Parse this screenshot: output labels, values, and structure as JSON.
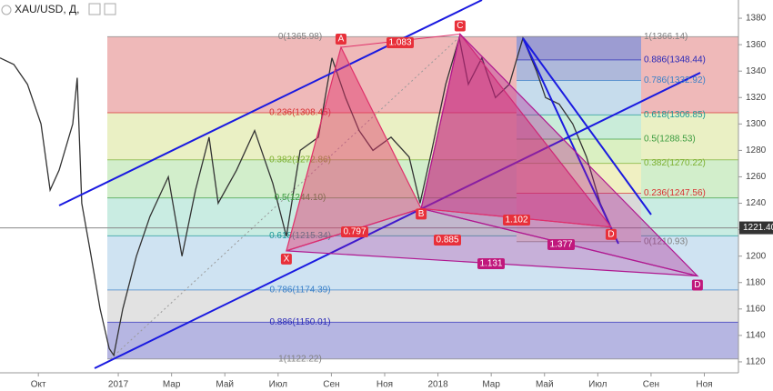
{
  "header": {
    "symbol": "XAU/USD, Д,"
  },
  "chart_data": {
    "type": "line",
    "x": [
      -1.44,
      -0.92,
      -0.41,
      0.1,
      0.44,
      0.78,
      1.29,
      1.46,
      1.63,
      1.98,
      2.32,
      2.66,
      2.83,
      3.17,
      3.68,
      4.19,
      4.88,
      5.39,
      5.9,
      6.41,
      6.75,
      7.44,
      8.12,
      8.8,
      9.31,
      9.83,
      10.51,
      11.02,
      11.53,
      12.04,
      12.56,
      13.24,
      13.92,
      14.33,
      14.77,
      15.29,
      15.8,
      16.14,
      16.65,
      17.16,
      17.68,
      18.19,
      18.7,
      19.04,
      19.55,
      20.06,
      20.58,
      21.09,
      21.43,
      21.6
    ],
    "values": [
      1350,
      1345,
      1330,
      1300,
      1250,
      1265,
      1300,
      1335,
      1240,
      1200,
      1160,
      1130,
      1125,
      1160,
      1200,
      1230,
      1260,
      1200,
      1250,
      1290,
      1240,
      1265,
      1295,
      1255,
      1215,
      1280,
      1290,
      1350,
      1320,
      1295,
      1280,
      1290,
      1275,
      1240,
      1280,
      1330,
      1365,
      1330,
      1350,
      1320,
      1330,
      1365,
      1340,
      1320,
      1315,
      1300,
      1275,
      1240,
      1225,
      1215
    ],
    "color": "#333333",
    "xlim": [
      -1.44,
      26.28
    ],
    "xticks": [
      {
        "value": 0,
        "label": "Окт"
      },
      {
        "value": 3,
        "label": "2017"
      },
      {
        "value": 5,
        "label": "Мар"
      },
      {
        "value": 7,
        "label": "Май"
      },
      {
        "value": 9,
        "label": "Июл"
      },
      {
        "value": 11,
        "label": "Сен"
      },
      {
        "value": 13,
        "label": "Ноя"
      },
      {
        "value": 15,
        "label": "2018"
      },
      {
        "value": 17,
        "label": "Мар"
      },
      {
        "value": 19,
        "label": "Май"
      },
      {
        "value": 21,
        "label": "Июл"
      },
      {
        "value": 23,
        "label": "Сен"
      },
      {
        "value": 25,
        "label": "Ноя"
      }
    ],
    "ylim": [
      1111.7,
      1393.8
    ],
    "yticks": [
      1120,
      1140,
      1160,
      1180,
      1200,
      1220,
      1240,
      1260,
      1280,
      1300,
      1320,
      1340,
      1360,
      1380
    ],
    "last_price": {
      "value": 1221.4,
      "label": "1221.40"
    },
    "fib_left": [
      {
        "price": 1365.98,
        "label": "0(1365.98)",
        "color": "#808080",
        "band": "#efb9b9"
      },
      {
        "price": 1308.45,
        "label": "0.236(1308.45)",
        "color": "#d83030",
        "band": "#eaf0c4"
      },
      {
        "price": 1272.86,
        "label": "0.382(1272.86)",
        "color": "#7cb030",
        "band": "#d2eecb"
      },
      {
        "price": 1244.1,
        "label": "0.5(1244.10)",
        "color": "#3c9c40",
        "band": "#c9ece2"
      },
      {
        "price": 1215.34,
        "label": "0.618(1215.34)",
        "color": "#1c9898",
        "band": "#cfe3f2"
      },
      {
        "price": 1174.39,
        "label": "0.786(1174.39)",
        "color": "#3a80c8",
        "band": "#e2e2e2"
      },
      {
        "price": 1150.01,
        "label": "0.886(1150.01)",
        "color": "#2828b8",
        "band": "#b6b6e2"
      },
      {
        "price": 1122.22,
        "label": "1(1122.22)",
        "color": "#808080"
      }
    ],
    "fib_right": [
      {
        "price": 1366.14,
        "label": "1(1366.14)",
        "color": "#808080",
        "band": "#9c9cd2"
      },
      {
        "price": 1348.44,
        "label": "0.886(1348.44)",
        "color": "#2828b8",
        "band": "#aeb8da"
      },
      {
        "price": 1332.92,
        "label": "0.786(1332.92)",
        "color": "#3a80c8",
        "band": "#c6dcec"
      },
      {
        "price": 1306.85,
        "label": "0.618(1306.85)",
        "color": "#1c9898",
        "band": "#c9ecd9"
      },
      {
        "price": 1288.53,
        "label": "0.5(1288.53)",
        "color": "#3c9c40",
        "band": "#daf0c2"
      },
      {
        "price": 1270.22,
        "label": "0.382(1270.22)",
        "color": "#7cb030",
        "band": "#f0f0c2"
      },
      {
        "price": 1247.56,
        "label": "0.236(1247.56)",
        "color": "#d83030",
        "band": "#d9d9d9"
      },
      {
        "price": 1210.93,
        "label": "0(1210.93)",
        "color": "#808080"
      }
    ],
    "pattern_points": [
      {
        "label": "X",
        "x": 9.31,
        "y": 1204
      },
      {
        "label": "A",
        "x": 11.36,
        "y": 1358
      },
      {
        "label": "B",
        "x": 14.37,
        "y": 1236
      },
      {
        "label": "C",
        "x": 15.83,
        "y": 1368
      },
      {
        "label": "D",
        "x": 21.5,
        "y": 1222
      },
      {
        "label": "D",
        "x": 24.74,
        "y": 1185
      }
    ],
    "ratios": [
      1.083,
      0.797,
      0.885,
      1.102,
      1.377,
      1.131
    ]
  }
}
